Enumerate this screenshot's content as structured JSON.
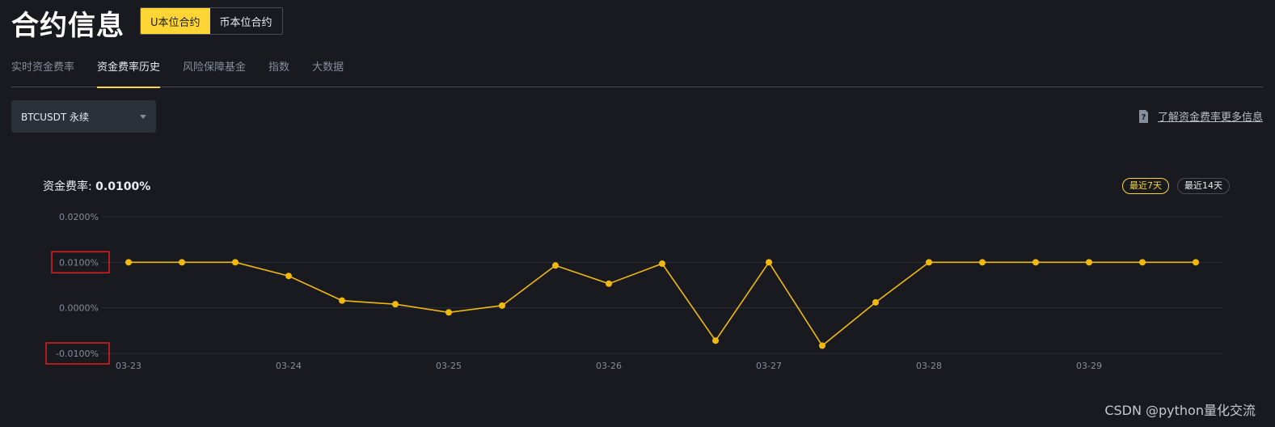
{
  "header": {
    "title": "合约信息",
    "toggle": [
      {
        "label": "U本位合约",
        "active": true
      },
      {
        "label": "币本位合约",
        "active": false
      }
    ]
  },
  "tabs": [
    {
      "label": "实时资金费率",
      "active": false
    },
    {
      "label": "资金费率历史",
      "active": true
    },
    {
      "label": "风险保障基金",
      "active": false
    },
    {
      "label": "指数",
      "active": false
    },
    {
      "label": "大数据",
      "active": false
    }
  ],
  "contract_select": {
    "value": "BTCUSDT 永续"
  },
  "info_link": {
    "label": "了解资金费率更多信息",
    "icon": "question-doc-icon"
  },
  "rate": {
    "label": "资金费率:",
    "value": "0.0100%"
  },
  "range_buttons": [
    {
      "label": "最近7天",
      "active": true
    },
    {
      "label": "最近14天",
      "active": false
    }
  ],
  "colors": {
    "background": "#181a20",
    "accent": "#fcd535",
    "line": "#f0b90b",
    "grid": "#2b2f36",
    "axis_text": "#848e9c",
    "highlight_box": "#e02020"
  },
  "chart_data": {
    "type": "line",
    "title": "",
    "xlabel": "",
    "ylabel": "",
    "ylim": [
      -0.01,
      0.02
    ],
    "y_ticks": [
      "0.0200%",
      "0.0100%",
      "0.0000%",
      "-0.0100%"
    ],
    "x_tick_labels": [
      "03-23",
      "03-24",
      "03-25",
      "03-26",
      "03-27",
      "03-28",
      "03-29"
    ],
    "grid": true,
    "legend": "none",
    "series": [
      {
        "x": [
          "03-23 00:00",
          "03-23 08:00",
          "03-23 16:00",
          "03-24 00:00",
          "03-24 08:00",
          "03-24 16:00",
          "03-25 00:00",
          "03-25 08:00",
          "03-25 16:00",
          "03-26 00:00",
          "03-26 08:00",
          "03-26 16:00",
          "03-27 00:00",
          "03-27 08:00",
          "03-27 16:00",
          "03-28 00:00",
          "03-28 08:00",
          "03-28 16:00",
          "03-29 00:00",
          "03-29 08:00",
          "03-29 16:00"
        ],
        "values": [
          0.01,
          0.01,
          0.01,
          0.007,
          0.0016,
          0.0008,
          -0.001,
          0.0005,
          0.0093,
          0.0053,
          0.0097,
          -0.0072,
          0.01,
          -0.0083,
          0.0012,
          0.01,
          0.01,
          0.01,
          0.01,
          0.01,
          0.01
        ]
      }
    ],
    "highlighted_ticks": [
      "0.0100%",
      "-0.0100%"
    ]
  },
  "watermark": "CSDN @python量化交流"
}
